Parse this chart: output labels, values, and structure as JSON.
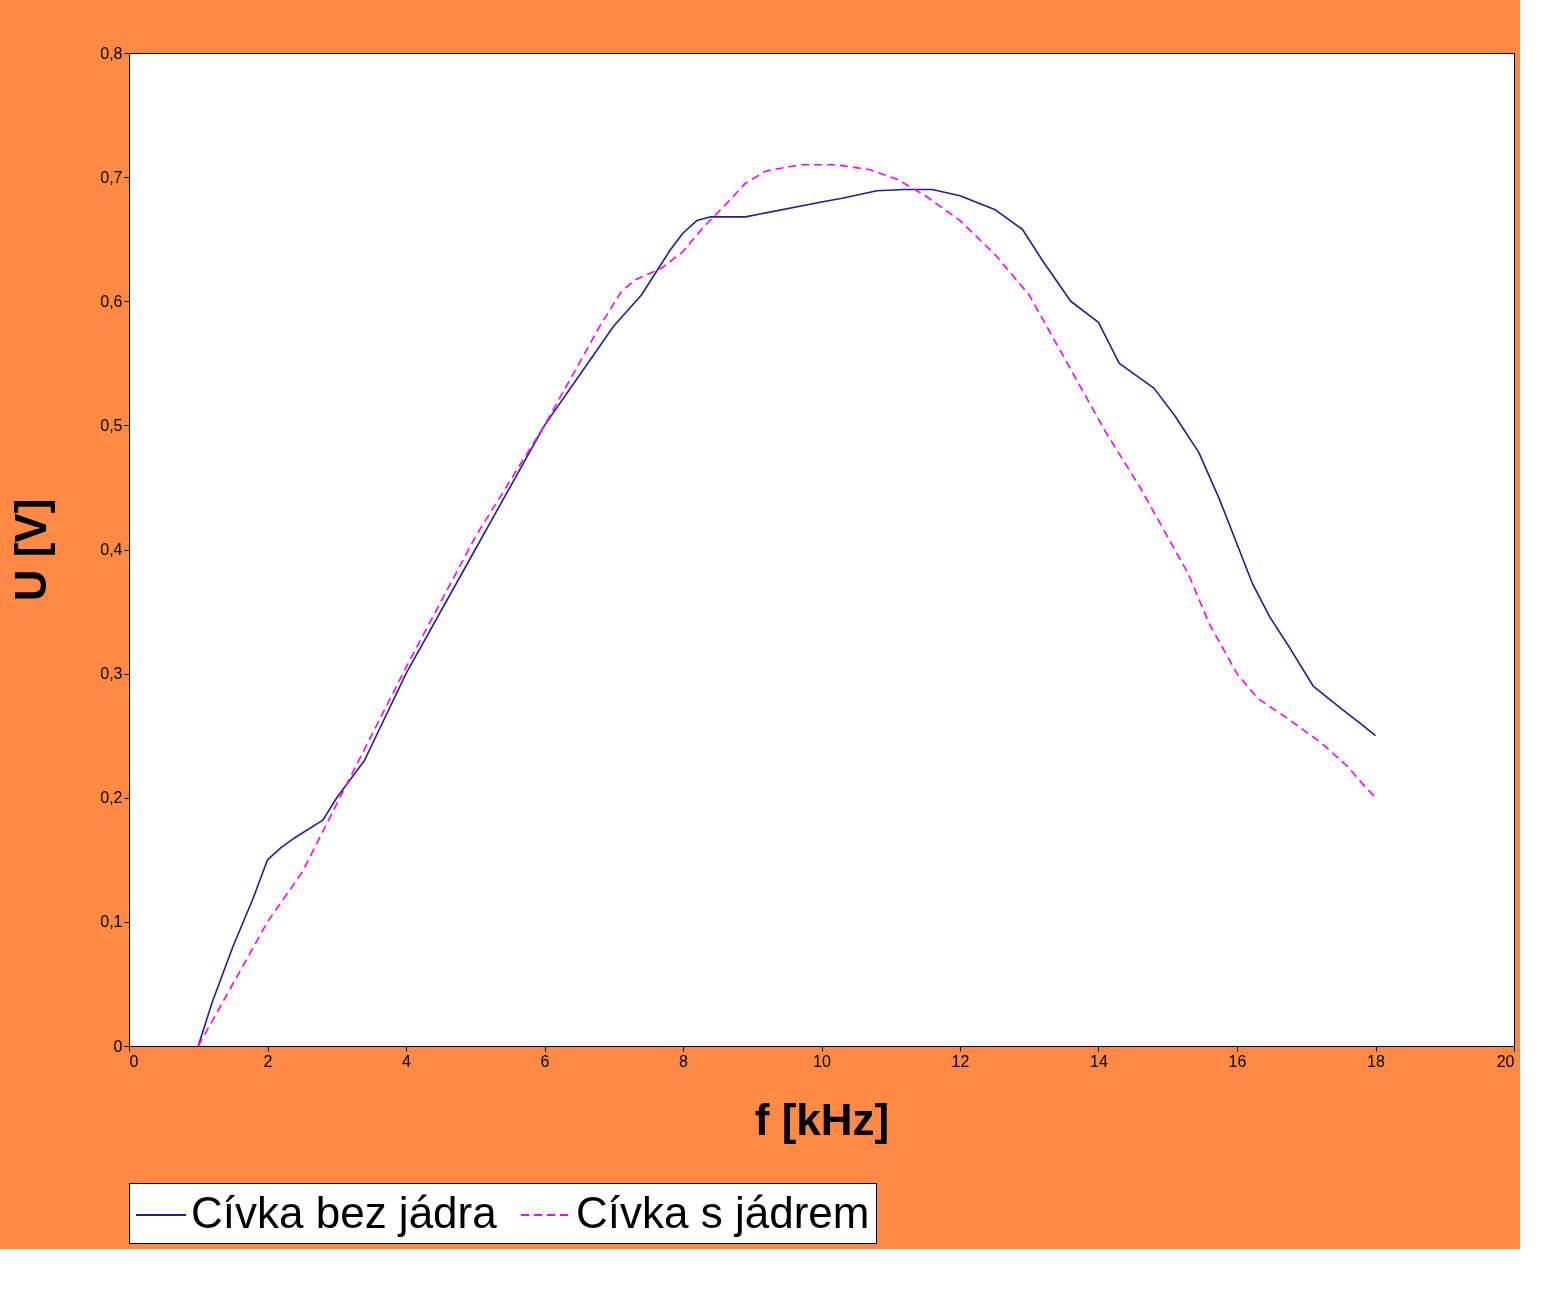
{
  "chart_data": {
    "type": "line",
    "xlabel": "f [kHz]",
    "ylabel": "U [V]",
    "xlim": [
      0,
      20
    ],
    "xticks": [
      0,
      2,
      4,
      6,
      8,
      10,
      12,
      14,
      16,
      18,
      20
    ],
    "ylim": [
      0,
      0.8
    ],
    "yticks": [
      0,
      {
        "value": 0.1,
        "label": "0,1"
      },
      {
        "value": 0.2,
        "label": "0,2"
      },
      {
        "value": 0.3,
        "label": "0,3"
      },
      {
        "value": 0.4,
        "label": "0,4"
      },
      {
        "value": 0.5,
        "label": "0,5"
      },
      {
        "value": 0.6,
        "label": "0,6"
      },
      {
        "value": 0.7,
        "label": "0,7"
      },
      {
        "value": 0.8,
        "label": "0,8"
      }
    ],
    "grid": false,
    "legend": "bottom",
    "series": [
      {
        "name": "Cívka bez jádra",
        "color": "#1f1f8f",
        "line_style": "solid",
        "x": [
          1.0,
          1.2,
          1.5,
          1.8,
          2.0,
          2.2,
          2.4,
          2.8,
          3.0,
          3.4,
          4.0,
          5.0,
          6.0,
          6.5,
          7.0,
          7.4,
          7.8,
          8.0,
          8.2,
          8.4,
          8.9,
          10.0,
          10.3,
          10.8,
          11.2,
          11.6,
          12.0,
          12.5,
          12.9,
          13.2,
          13.6,
          14.0,
          14.3,
          14.8,
          15.1,
          15.45,
          15.75,
          16.22,
          16.48,
          16.77,
          17.1,
          17.5,
          17.78,
          18.0
        ],
        "values": [
          0,
          0.035,
          0.08,
          0.12,
          0.15,
          0.16,
          0.168,
          0.182,
          0.2,
          0.23,
          0.3,
          0.4,
          0.5,
          0.54,
          0.58,
          0.605,
          0.64,
          0.655,
          0.665,
          0.668,
          0.668,
          0.68,
          0.683,
          0.689,
          0.69,
          0.69,
          0.685,
          0.674,
          0.658,
          0.632,
          0.6,
          0.583,
          0.55,
          0.53,
          0.508,
          0.478,
          0.44,
          0.373,
          0.345,
          0.32,
          0.29,
          0.272,
          0.26,
          0.25
        ]
      },
      {
        "name": "Cívka s jádrem",
        "color": "#ff00ff",
        "line_style": "dashed",
        "x": [
          1.0,
          1.3,
          1.6,
          2.0,
          2.5,
          3.0,
          3.5,
          4.0,
          5.0,
          6.0,
          6.3,
          6.8,
          7.1,
          7.3,
          7.7,
          8.0,
          8.3,
          8.6,
          8.9,
          9.2,
          9.7,
          10.2,
          10.7,
          11.1,
          11.5,
          12.0,
          12.5,
          13.0,
          13.3,
          13.7,
          14.1,
          14.6,
          15.0,
          15.3,
          15.6,
          16.0,
          16.3,
          16.7,
          17.2,
          17.6,
          17.8,
          18.0
        ],
        "values": [
          0,
          0.03,
          0.06,
          0.1,
          0.14,
          0.195,
          0.25,
          0.305,
          0.41,
          0.5,
          0.53,
          0.58,
          0.607,
          0.617,
          0.627,
          0.64,
          0.66,
          0.677,
          0.695,
          0.705,
          0.71,
          0.71,
          0.706,
          0.698,
          0.685,
          0.665,
          0.638,
          0.605,
          0.575,
          0.535,
          0.495,
          0.45,
          0.41,
          0.38,
          0.34,
          0.3,
          0.28,
          0.265,
          0.245,
          0.225,
          0.212,
          0.2
        ]
      }
    ]
  }
}
